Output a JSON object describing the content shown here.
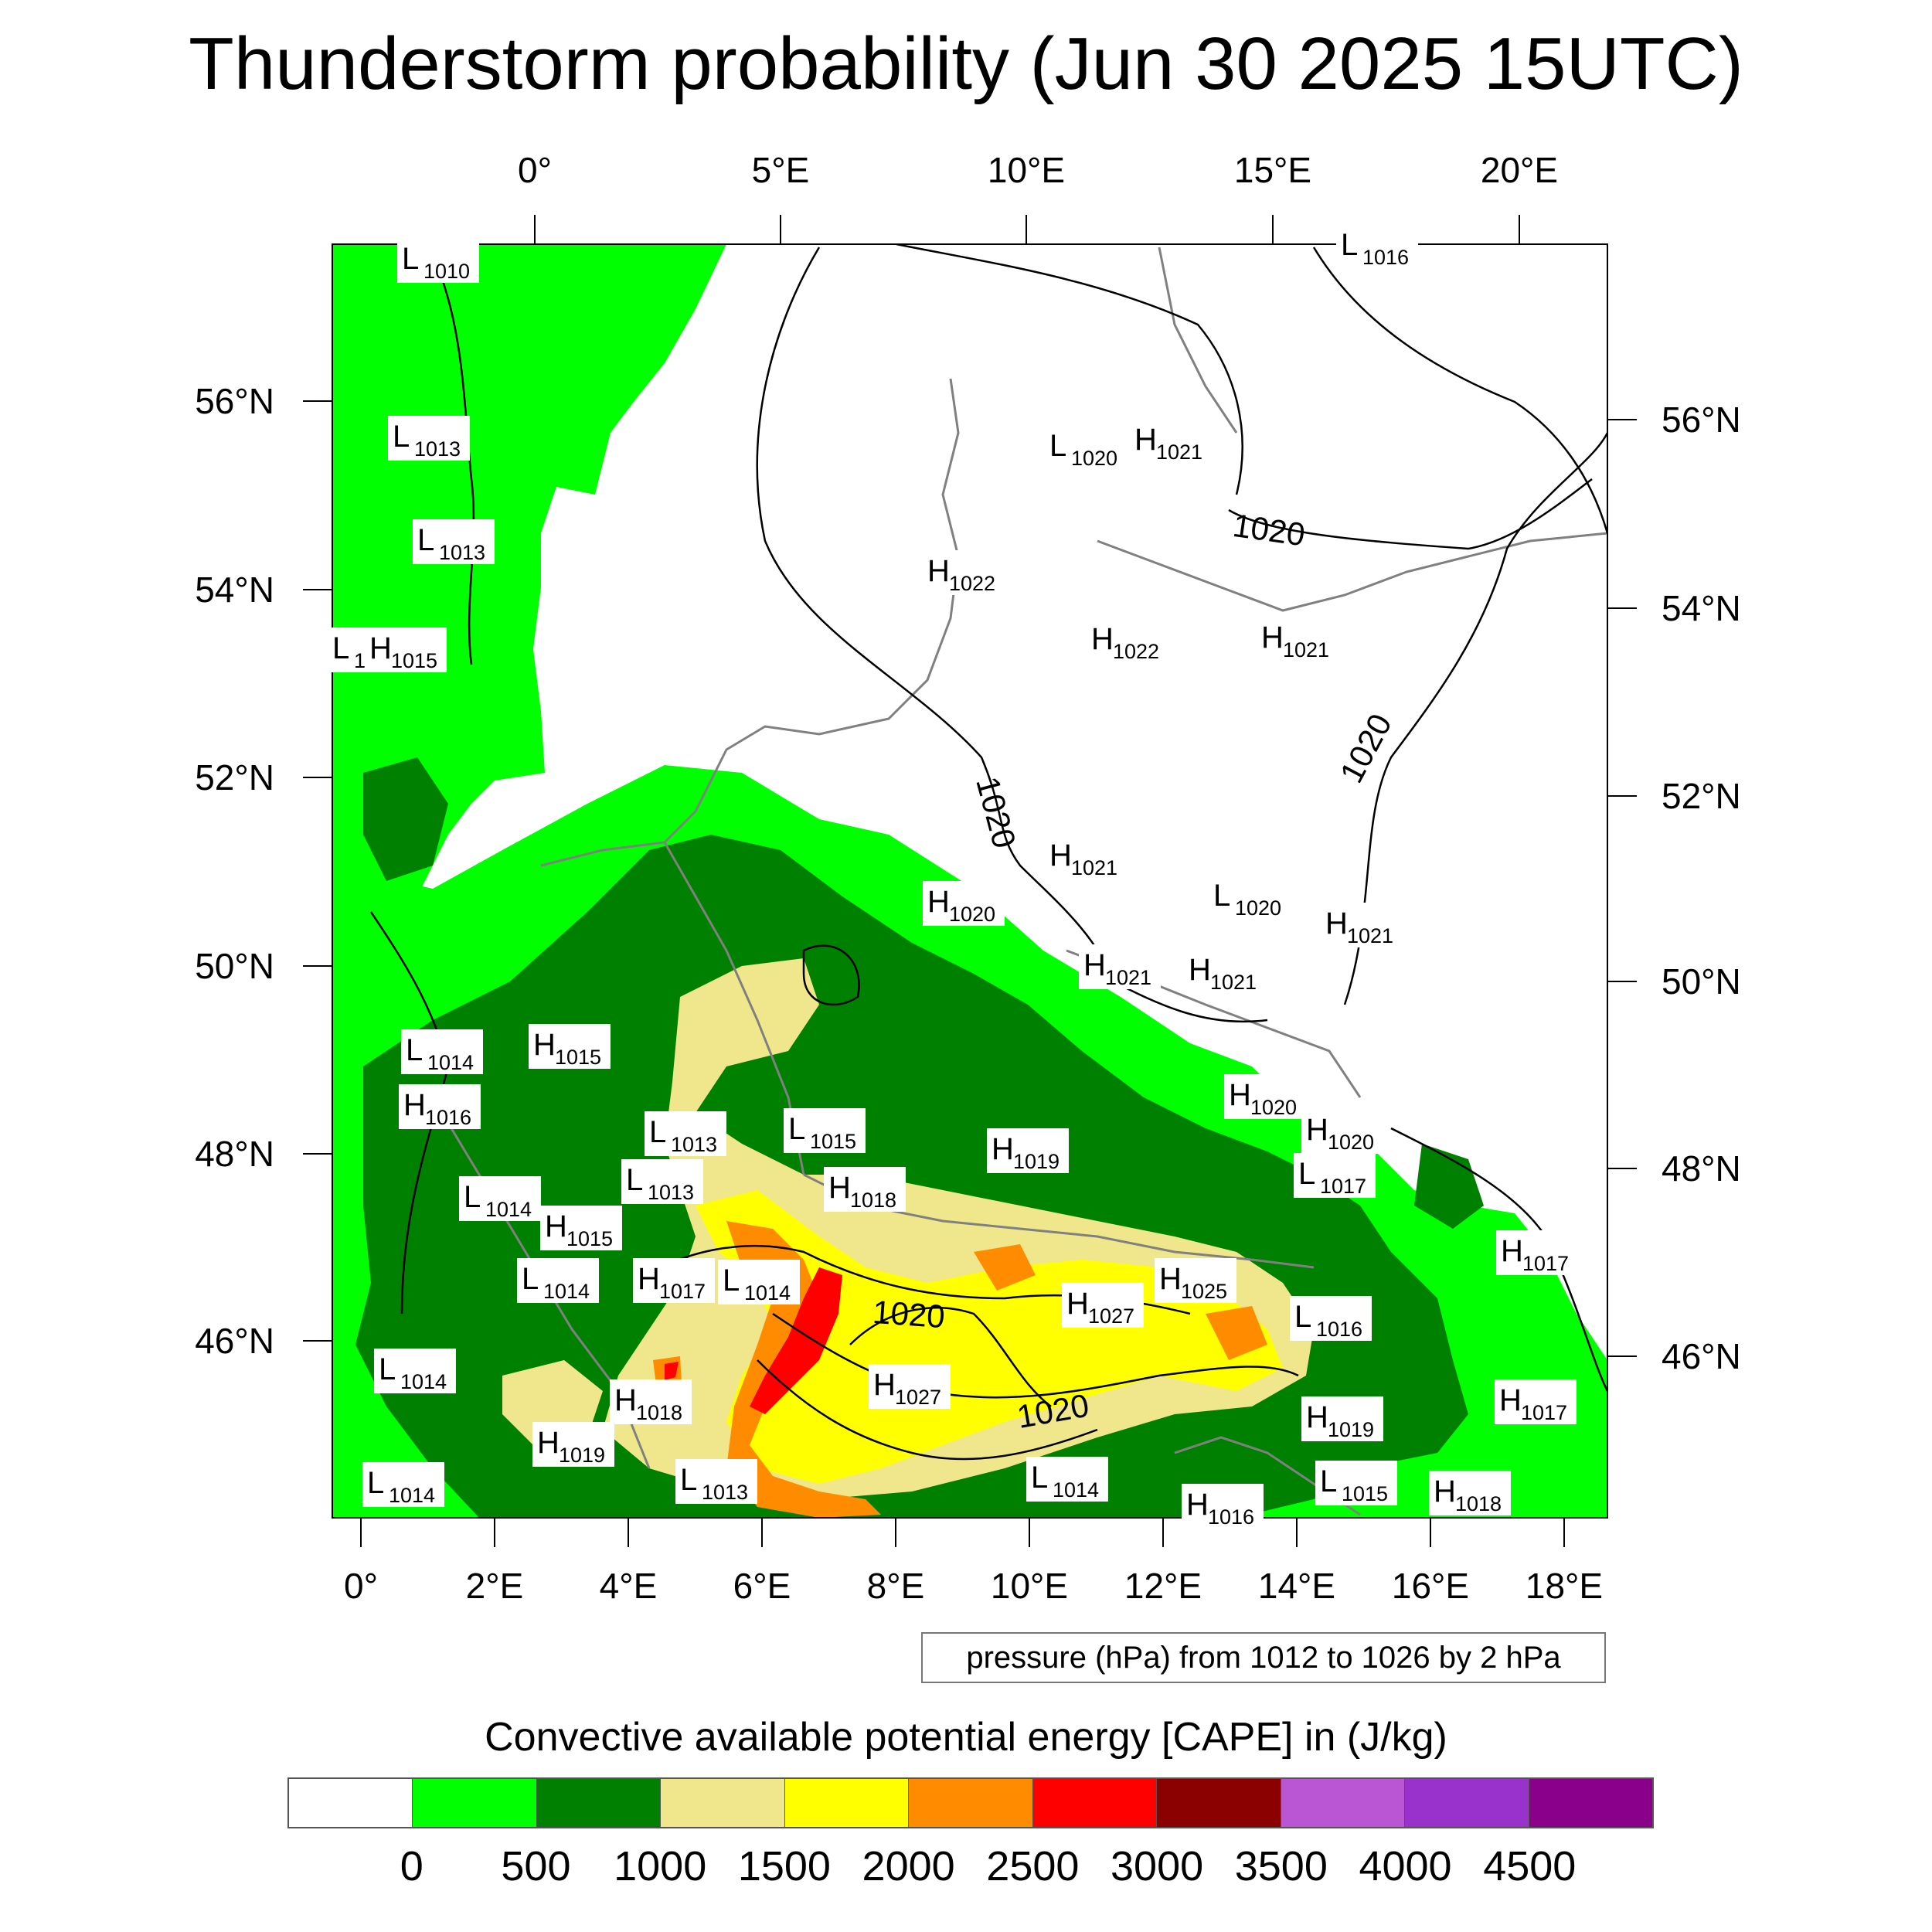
{
  "title": "Thunderstorm probability (Jun 30 2025 15UTC)",
  "top_lon_labels": [
    "0°",
    "5°E",
    "10°E",
    "15°E",
    "20°E"
  ],
  "bottom_lon_labels": [
    "0°",
    "2°E",
    "4°E",
    "6°E",
    "8°E",
    "10°E",
    "12°E",
    "14°E",
    "16°E",
    "18°E"
  ],
  "left_lat_labels": [
    "56°N",
    "54°N",
    "52°N",
    "50°N",
    "48°N",
    "46°N"
  ],
  "right_lat_labels": [
    "56°N",
    "54°N",
    "52°N",
    "50°N",
    "48°N",
    "46°N"
  ],
  "pressure_centers": [
    {
      "type": "L",
      "value": "1010"
    },
    {
      "type": "L",
      "value": "1016"
    },
    {
      "type": "L",
      "value": "1013"
    },
    {
      "type": "L",
      "value": "1013"
    },
    {
      "type": "L",
      "value": "1"
    },
    {
      "type": "H",
      "value": "1015"
    },
    {
      "type": "L",
      "value": "1020"
    },
    {
      "type": "H",
      "value": "1021"
    },
    {
      "type": "H",
      "value": "1022"
    },
    {
      "type": "H",
      "value": "1022"
    },
    {
      "type": "H",
      "value": "1021"
    },
    {
      "type": "H",
      "value": "1021"
    },
    {
      "type": "H",
      "value": "1020"
    },
    {
      "type": "L",
      "value": "1020"
    },
    {
      "type": "H",
      "value": "1021"
    },
    {
      "type": "H",
      "value": "1021"
    },
    {
      "type": "H",
      "value": "1021"
    },
    {
      "type": "L",
      "value": "1014"
    },
    {
      "type": "H",
      "value": "1015"
    },
    {
      "type": "H",
      "value": "1016"
    },
    {
      "type": "H",
      "value": "1020"
    },
    {
      "type": "H",
      "value": "1020"
    },
    {
      "type": "L",
      "value": "1013"
    },
    {
      "type": "L",
      "value": "1015"
    },
    {
      "type": "H",
      "value": "1019"
    },
    {
      "type": "L",
      "value": "1017"
    },
    {
      "type": "L",
      "value": "1013"
    },
    {
      "type": "H",
      "value": "1018"
    },
    {
      "type": "L",
      "value": "1014"
    },
    {
      "type": "H",
      "value": "1015"
    },
    {
      "type": "H",
      "value": "1017"
    },
    {
      "type": "L",
      "value": "1014"
    },
    {
      "type": "L",
      "value": "1014"
    },
    {
      "type": "H",
      "value": "1025"
    },
    {
      "type": "H",
      "value": "1027"
    },
    {
      "type": "L",
      "value": "1016"
    },
    {
      "type": "L",
      "value": "1014"
    },
    {
      "type": "H",
      "value": "1027"
    },
    {
      "type": "H",
      "value": "1018"
    },
    {
      "type": "H",
      "value": "1017"
    },
    {
      "type": "H",
      "value": "1019"
    },
    {
      "type": "H",
      "value": "1019"
    },
    {
      "type": "L",
      "value": "1014"
    },
    {
      "type": "L",
      "value": "1013"
    },
    {
      "type": "L",
      "value": "1014"
    },
    {
      "type": "H",
      "value": "1016"
    },
    {
      "type": "L",
      "value": "1015"
    },
    {
      "type": "H",
      "value": "1018"
    },
    {
      "type": "H",
      "value": "1017"
    }
  ],
  "contour_labels": [
    "1020",
    "1020",
    "1020",
    "1020",
    "1020",
    "1020"
  ],
  "contour_info": "pressure (hPa) from 1012 to 1026 by 2 hPa",
  "colorbar": {
    "title": "Convective available potential energy [CAPE] in (J/kg)",
    "colors": [
      "#ffffff",
      "#00ff00",
      "#008000",
      "#f0e68c",
      "#ffff00",
      "#ff8c00",
      "#ff0000",
      "#8b0000",
      "#ba55d3",
      "#9932cc",
      "#8b008b"
    ],
    "labels": [
      "0",
      "500",
      "1000",
      "1500",
      "2000",
      "2500",
      "3000",
      "3500",
      "4000",
      "4500"
    ]
  }
}
